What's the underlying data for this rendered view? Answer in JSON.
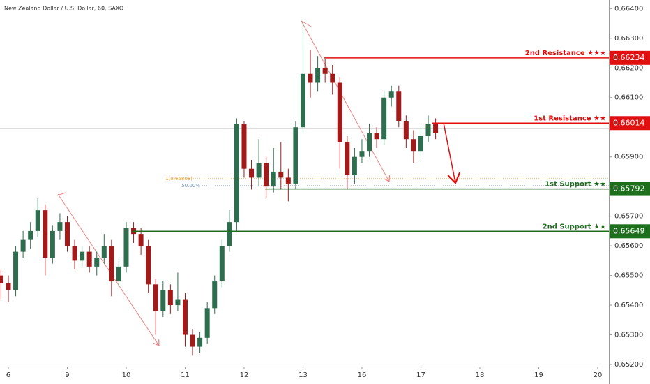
{
  "chart_data": {
    "type": "candlestick",
    "title": "New Zealand Dollar / U.S. Dollar, 60, SAXO",
    "x": [
      -0.125,
      0,
      0.125,
      0.25,
      0.375,
      0.5,
      0.625,
      0.75,
      0.875,
      1,
      1.125,
      1.25,
      1.375,
      1.5,
      1.625,
      1.75,
      1.875,
      2,
      2.125,
      2.25,
      2.375,
      2.5,
      2.625,
      2.75,
      2.875,
      3,
      3.125,
      3.25,
      3.375,
      3.5,
      3.625,
      3.75,
      3.875,
      4,
      4.125,
      4.25,
      4.375,
      4.5,
      4.625,
      4.75,
      4.875,
      5,
      5.125,
      5.25,
      5.375,
      5.5,
      5.625,
      5.75,
      5.875,
      6,
      6.125,
      6.25,
      6.375,
      6.5,
      6.625,
      6.75,
      6.875,
      7,
      7.125,
      7.25
    ],
    "open": [
      0.655,
      0.65475,
      0.6545,
      0.6558,
      0.6562,
      0.6565,
      0.6572,
      0.6556,
      0.6565,
      0.6568,
      0.656,
      0.6555,
      0.6558,
      0.6553,
      0.6556,
      0.656,
      0.6548,
      0.6553,
      0.6566,
      0.6564,
      0.656,
      0.6547,
      0.6538,
      0.6545,
      0.654,
      0.6542,
      0.653,
      0.6526,
      0.6529,
      0.6539,
      0.6548,
      0.656,
      0.6568,
      0.6601,
      0.6586,
      0.6583,
      0.6588,
      0.658,
      0.6585,
      0.6583,
      0.6581,
      0.66,
      0.6618,
      0.6615,
      0.662,
      0.6618,
      0.6615,
      0.6595,
      0.6584,
      0.659,
      0.6592,
      0.6598,
      0.6596,
      0.661,
      0.6612,
      0.6602,
      0.6596,
      0.6592,
      0.6597,
      0.6601
    ],
    "high": [
      0.6552,
      0.655,
      0.656,
      0.6565,
      0.6568,
      0.6576,
      0.6574,
      0.6567,
      0.6571,
      0.657,
      0.6562,
      0.656,
      0.656,
      0.6558,
      0.6564,
      0.6562,
      0.6556,
      0.6568,
      0.6568,
      0.6566,
      0.6562,
      0.6549,
      0.6548,
      0.6547,
      0.6551,
      0.6544,
      0.6532,
      0.6531,
      0.6541,
      0.655,
      0.6562,
      0.6572,
      0.6603,
      0.6602,
      0.6589,
      0.6596,
      0.659,
      0.6593,
      0.6595,
      0.6586,
      0.6602,
      0.6636,
      0.6626,
      0.6624,
      0.6623,
      0.6621,
      0.6617,
      0.6597,
      0.6593,
      0.6596,
      0.6601,
      0.66,
      0.6612,
      0.6614,
      0.6614,
      0.6604,
      0.6599,
      0.66,
      0.6604,
      0.6603
    ],
    "low": [
      0.6542,
      0.6541,
      0.6543,
      0.6556,
      0.6559,
      0.6563,
      0.655,
      0.6554,
      0.6562,
      0.6558,
      0.6552,
      0.6553,
      0.6551,
      0.655,
      0.6554,
      0.6543,
      0.6546,
      0.6551,
      0.6561,
      0.6557,
      0.6544,
      0.653,
      0.6536,
      0.6537,
      0.6538,
      0.6526,
      0.6523,
      0.6524,
      0.6527,
      0.6537,
      0.6546,
      0.6558,
      0.6565,
      0.6583,
      0.6579,
      0.658,
      0.6576,
      0.6578,
      0.6579,
      0.6575,
      0.6579,
      0.6598,
      0.661,
      0.6612,
      0.6615,
      0.6611,
      0.6586,
      0.6579,
      0.6581,
      0.6588,
      0.659,
      0.6593,
      0.6594,
      0.6607,
      0.66,
      0.6593,
      0.6588,
      0.659,
      0.6595,
      0.6596
    ],
    "close": [
      0.65475,
      0.6545,
      0.6558,
      0.6562,
      0.6565,
      0.6572,
      0.6556,
      0.6565,
      0.6568,
      0.656,
      0.6555,
      0.6558,
      0.6553,
      0.6556,
      0.656,
      0.6548,
      0.6553,
      0.6566,
      0.6564,
      0.656,
      0.6547,
      0.6538,
      0.6545,
      0.654,
      0.6542,
      0.653,
      0.6526,
      0.6529,
      0.6539,
      0.6548,
      0.656,
      0.6568,
      0.6601,
      0.6586,
      0.6583,
      0.6588,
      0.658,
      0.6585,
      0.6583,
      0.6581,
      0.66,
      0.6618,
      0.6615,
      0.662,
      0.6618,
      0.6615,
      0.6595,
      0.6584,
      0.659,
      0.6592,
      0.6598,
      0.6596,
      0.661,
      0.6612,
      0.6602,
      0.6596,
      0.6592,
      0.6597,
      0.6601,
      0.6598
    ],
    "up_color": "#2e6e4e",
    "down_color": "#a31a1a",
    "xlim": [
      -0.142,
      10.19
    ],
    "xticks": [
      {
        "value": 0,
        "label": "6"
      },
      {
        "value": 1,
        "label": "9"
      },
      {
        "value": 2,
        "label": "10"
      },
      {
        "value": 3,
        "label": "11"
      },
      {
        "value": 4,
        "label": "12"
      },
      {
        "value": 5,
        "label": "13"
      },
      {
        "value": 6,
        "label": "16"
      },
      {
        "value": 7,
        "label": "17"
      },
      {
        "value": 8,
        "label": "18"
      },
      {
        "value": 9,
        "label": "19"
      },
      {
        "value": 10,
        "label": "20"
      }
    ],
    "ylim": [
      0.65193,
      0.66429
    ],
    "yticks": [
      {
        "value": 0.652,
        "label": "0.65200"
      },
      {
        "value": 0.653,
        "label": "0.65300"
      },
      {
        "value": 0.654,
        "label": "0.65400"
      },
      {
        "value": 0.655,
        "label": "0.65500"
      },
      {
        "value": 0.656,
        "label": "0.65600"
      },
      {
        "value": 0.657,
        "label": "0.65700"
      },
      {
        "value": 0.658,
        "label": "0.65800"
      },
      {
        "value": 0.659,
        "label": "0.65900"
      },
      {
        "value": 0.66,
        "label": "0.66000"
      },
      {
        "value": 0.661,
        "label": "0.66100"
      },
      {
        "value": 0.662,
        "label": "0.66200"
      },
      {
        "value": 0.663,
        "label": "0.66300"
      },
      {
        "value": 0.664,
        "label": "0.66400"
      }
    ],
    "levels": [
      {
        "label": "2nd Resistance ★★★",
        "value": 0.66234,
        "color": "#e01010"
      },
      {
        "label": "1st Resistance ★★",
        "value": 0.66014,
        "color": "#e01010"
      },
      {
        "label": "1st Support ★★",
        "value": 0.65792,
        "color": "#1e6e1e"
      },
      {
        "label": "2nd Support ★★",
        "value": 0.65649,
        "color": "#1e6e1e"
      }
    ],
    "annotations": [
      "1(0.65808)",
      "50.00%"
    ]
  }
}
